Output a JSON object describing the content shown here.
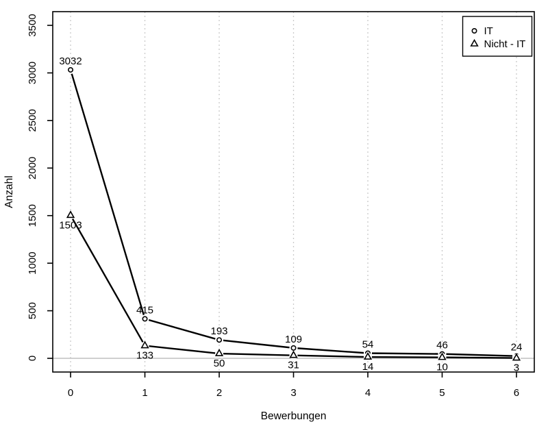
{
  "chart_data": {
    "type": "line",
    "title": "",
    "xlabel": "Bewerbungen",
    "ylabel": "Anzahl",
    "x": [
      0,
      1,
      2,
      3,
      4,
      5,
      6
    ],
    "series": [
      {
        "name": "IT",
        "marker": "circle",
        "values": [
          3032,
          415,
          193,
          109,
          54,
          46,
          24
        ],
        "value_label_position": "above"
      },
      {
        "name": "Nicht - IT",
        "marker": "triangle",
        "values": [
          1503,
          133,
          50,
          31,
          14,
          10,
          3
        ],
        "value_label_position": "below"
      }
    ],
    "xticks": [
      0,
      1,
      2,
      3,
      4,
      5,
      6
    ],
    "yticks": [
      0,
      500,
      1000,
      1500,
      2000,
      2500,
      3000,
      3500
    ],
    "xlim": [
      -0.24,
      6.24
    ],
    "ylim": [
      -144,
      3644
    ],
    "grid": {
      "vertical": true,
      "style": "dotted",
      "color": "#c9c9c9"
    },
    "zero_line": {
      "show": true,
      "y": 0,
      "color": "#bfbfbf"
    },
    "line_color": "#000000",
    "text_color": "#000000",
    "background": "#ffffff",
    "legend": {
      "position": "top-right",
      "entries": [
        {
          "label": "IT",
          "marker": "circle"
        },
        {
          "label": "Nicht - IT",
          "marker": "triangle"
        }
      ]
    }
  }
}
